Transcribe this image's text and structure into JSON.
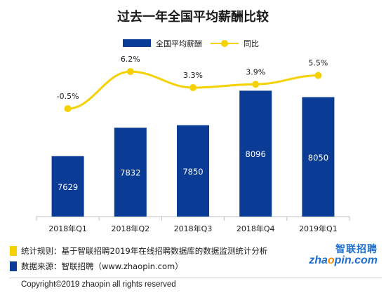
{
  "chart_data": {
    "type": "bar",
    "title": "过去一年全国平均薪酬比较",
    "categories": [
      "2018年Q1",
      "2018年Q2",
      "2018年Q3",
      "2018年Q4",
      "2019年Q1"
    ],
    "series": [
      {
        "name": "全国平均薪酬",
        "type": "bar",
        "values": [
          7629,
          7832,
          7850,
          8096,
          8050
        ],
        "labels": [
          "7629",
          "7832",
          "7850",
          "8096",
          "8050"
        ],
        "color": "#0a3c96"
      },
      {
        "name": "同比",
        "type": "line",
        "values": [
          -0.5,
          6.2,
          3.3,
          3.9,
          5.5
        ],
        "labels": [
          "-0.5%",
          "6.2%",
          "3.3%",
          "3.9%",
          "5.5%"
        ],
        "color": "#f5d100"
      }
    ],
    "legend": "top-center",
    "grid": false
  },
  "notes": [
    {
      "text": "统计规则：基于智联招聘2019年在线招聘数据库的数据监测统计分析",
      "color": "#f5d100"
    },
    {
      "text": "数据来源：智联招聘（www.zhaopin.com）",
      "color": "#0a3c96"
    }
  ],
  "logo": {
    "cn": "智联招聘",
    "en_a": "zha",
    "en_b": "o",
    "en_c": "pin.com"
  },
  "copyright": "Copyright©2019 zhaopin all rights reserved"
}
